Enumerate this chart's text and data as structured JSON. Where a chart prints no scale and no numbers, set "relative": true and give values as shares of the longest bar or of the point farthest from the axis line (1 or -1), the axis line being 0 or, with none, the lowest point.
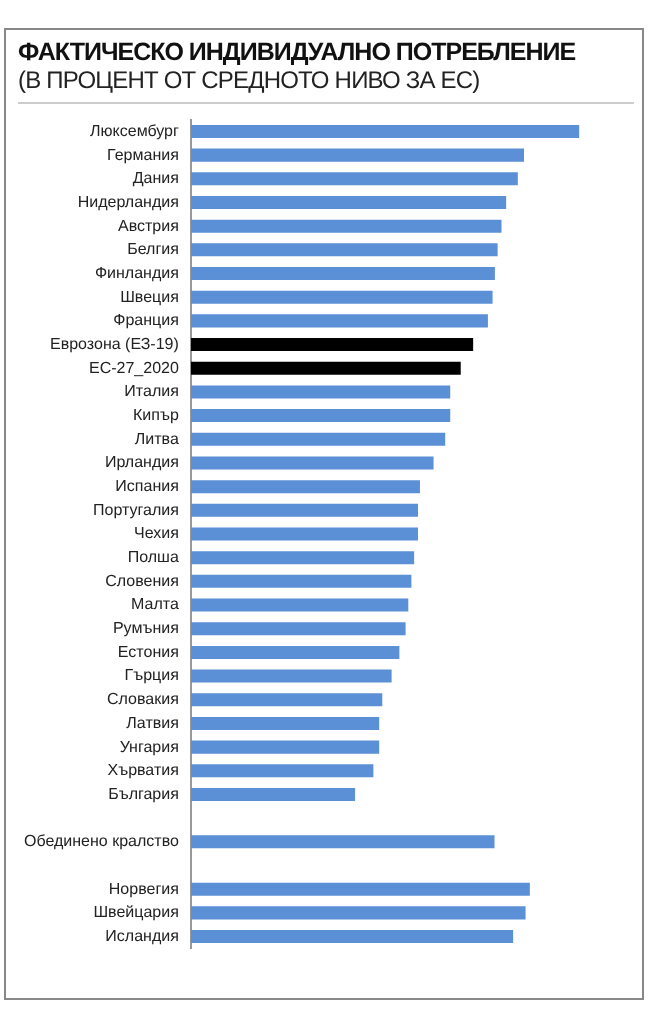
{
  "chart_data": {
    "type": "bar",
    "orientation": "horizontal",
    "relative": true,
    "legend": false,
    "title": "ФАКТИЧЕСКО ИНДИВИДУАЛНО ПОТРЕБЛЕНИЕ",
    "subtitle": "(В ПРОЦЕНТ ОТ СРЕДНОТО НИВО ЗА ЕС)",
    "categories": [
      "Люксембург",
      "Германия",
      "Дания",
      "Нидерландия",
      "Австрия",
      "Белгия",
      "Финландия",
      "Швеция",
      "Франция",
      "Еврозона (ЕЗ-19)",
      "ЕС-27_2020",
      "Италия",
      "Кипър",
      "Литва",
      "Ирландия",
      "Испания",
      "Португалия",
      "Чехия",
      "Полша",
      "Словения",
      "Малта",
      "Румъния",
      "Естония",
      "Гърция",
      "Словакия",
      "Латвия",
      "Унгария",
      "Хърватия",
      "България",
      null,
      "Обединено кралство",
      null,
      "Норвегия",
      "Швейцария",
      "Исландия"
    ],
    "values": [
      1,
      0.858,
      0.842,
      0.812,
      0.8,
      0.79,
      0.783,
      0.777,
      0.765,
      0.727,
      0.695,
      0.668,
      0.668,
      0.655,
      0.625,
      0.59,
      0.585,
      0.585,
      0.575,
      0.568,
      0.56,
      0.553,
      0.537,
      0.517,
      0.493,
      0.485,
      0.485,
      0.47,
      0.423,
      null,
      0.782,
      null,
      0.873,
      0.862,
      0.83
    ],
    "colors": [
      "#5b8fd6",
      "#5b8fd6",
      "#5b8fd6",
      "#5b8fd6",
      "#5b8fd6",
      "#5b8fd6",
      "#5b8fd6",
      "#5b8fd6",
      "#5b8fd6",
      "#000000",
      "#000000",
      "#5b8fd6",
      "#5b8fd6",
      "#5b8fd6",
      "#5b8fd6",
      "#5b8fd6",
      "#5b8fd6",
      "#5b8fd6",
      "#5b8fd6",
      "#5b8fd6",
      "#5b8fd6",
      "#5b8fd6",
      "#5b8fd6",
      "#5b8fd6",
      "#5b8fd6",
      "#5b8fd6",
      "#5b8fd6",
      "#5b8fd6",
      "#5b8fd6",
      "#5b8fd6",
      "#5b8fd6",
      "#5b8fd6",
      "#5b8fd6",
      "#5b8fd6",
      "#5b8fd6"
    ]
  }
}
